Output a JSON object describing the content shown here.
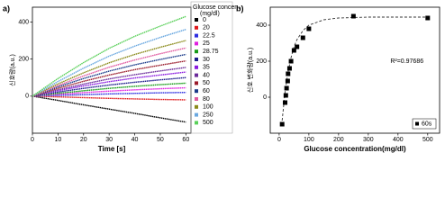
{
  "chart_data": [
    {
      "type": "line",
      "label": "a)",
      "xlabel": "Time [s]",
      "ylabel": "신호량(a.u.)",
      "legend_title": "Glucose concen.",
      "legend_subtitle": "(mg/dl)",
      "x": [
        0,
        10,
        20,
        30,
        40,
        50,
        60
      ],
      "xlim": [
        0,
        62
      ],
      "xticks": [
        0,
        10,
        20,
        30,
        40,
        50,
        60
      ],
      "ylim": [
        -200,
        480
      ],
      "yticks": [
        0,
        200,
        400
      ],
      "series": [
        {
          "name": "0",
          "color": "#000000",
          "values": [
            0,
            -23,
            -47,
            -70,
            -93,
            -117,
            -140
          ]
        },
        {
          "name": "20",
          "color": "#e0191b",
          "values": [
            0,
            -4,
            -8,
            -12,
            -15,
            -18,
            -20
          ]
        },
        {
          "name": "22.5",
          "color": "#2c2ce0",
          "values": [
            0,
            4,
            8,
            12,
            15,
            18,
            20
          ]
        },
        {
          "name": "25",
          "color": "#e020e0",
          "values": [
            0,
            10,
            19,
            27,
            34,
            40,
            45
          ]
        },
        {
          "name": "28.75",
          "color": "#159a15",
          "values": [
            0,
            15,
            29,
            42,
            53,
            62,
            70
          ]
        },
        {
          "name": "30",
          "color": "#1a1a8a",
          "values": [
            0,
            22,
            42,
            60,
            75,
            88,
            100
          ]
        },
        {
          "name": "35",
          "color": "#8a1ae0",
          "values": [
            0,
            29,
            55,
            78,
            98,
            114,
            130
          ]
        },
        {
          "name": "40",
          "color": "#6a2a9a",
          "values": [
            0,
            34,
            65,
            93,
            116,
            136,
            155
          ]
        },
        {
          "name": "50",
          "color": "#9a1a2a",
          "values": [
            0,
            42,
            80,
            114,
            143,
            167,
            190
          ]
        },
        {
          "name": "60",
          "color": "#1a3a8a",
          "values": [
            0,
            50,
            95,
            135,
            169,
            198,
            225
          ]
        },
        {
          "name": "80",
          "color": "#e05aa0",
          "values": [
            0,
            57,
            109,
            156,
            195,
            229,
            260
          ]
        },
        {
          "name": "100",
          "color": "#8a8a1a",
          "values": [
            0,
            66,
            126,
            180,
            225,
            264,
            300
          ]
        },
        {
          "name": "250",
          "color": "#6aa8e0",
          "values": [
            0,
            79,
            151,
            216,
            270,
            317,
            360
          ]
        },
        {
          "name": "500",
          "color": "#5ad05a",
          "values": [
            0,
            95,
            181,
            258,
            323,
            378,
            430
          ]
        }
      ]
    },
    {
      "type": "scatter",
      "label": "b)",
      "xlabel": "Glucose concentration(mg/dl)",
      "ylabel": "신호 변화량(a.u.)",
      "annotation": "R²=0.97686",
      "xlim": [
        -30,
        540
      ],
      "xticks": [
        0,
        100,
        200,
        300,
        400,
        500
      ],
      "ylim": [
        -200,
        500
      ],
      "yticks": [
        0,
        200,
        400
      ],
      "series": [
        {
          "name": "60s",
          "color": "#000000",
          "x": [
            10,
            20,
            22.5,
            25,
            28.75,
            30,
            35,
            40,
            50,
            60,
            80,
            100,
            250,
            500
          ],
          "values": [
            -150,
            -30,
            10,
            50,
            90,
            130,
            160,
            200,
            260,
            280,
            330,
            380,
            450,
            440
          ]
        }
      ],
      "fit": {
        "color": "#333333",
        "x": [
          10,
          20,
          30,
          40,
          50,
          60,
          80,
          100,
          150,
          200,
          300,
          400,
          500
        ],
        "values": [
          -130,
          30,
          140,
          220,
          280,
          320,
          370,
          400,
          430,
          440,
          445,
          445,
          445
        ]
      }
    }
  ]
}
